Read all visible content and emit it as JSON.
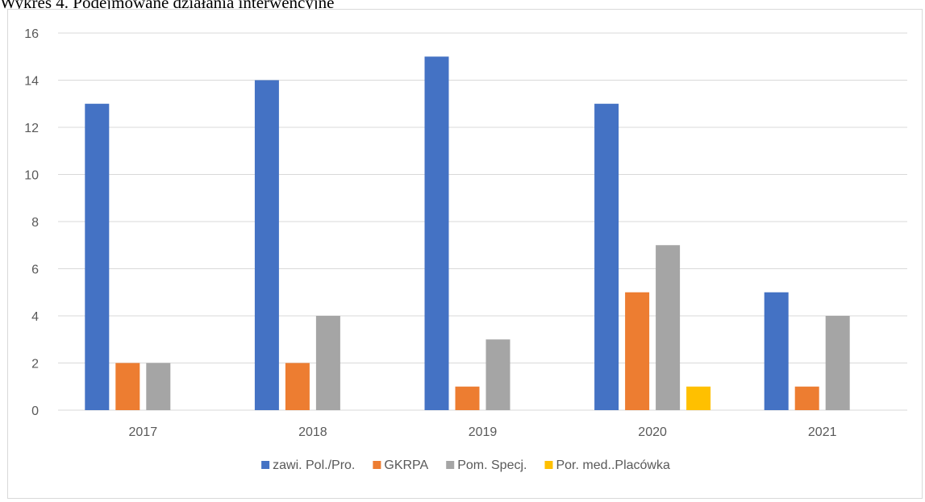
{
  "caption": "Wykres 4. Podejmowane działania interwencyjne",
  "chart_data": {
    "type": "bar",
    "title": "Wykres 4. Podejmowane działania interwencyjne",
    "categories": [
      "2017",
      "2018",
      "2019",
      "2020",
      "2021"
    ],
    "series": [
      {
        "name": "zawi. Pol./Pro.",
        "color": "#4472c4",
        "values": [
          13,
          14,
          15,
          13,
          5
        ]
      },
      {
        "name": "GKRPA",
        "color": "#ed7d31",
        "values": [
          2,
          2,
          1,
          5,
          1
        ]
      },
      {
        "name": "Pom. Specj.",
        "color": "#a5a5a5",
        "values": [
          2,
          4,
          3,
          7,
          4
        ]
      },
      {
        "name": "Por. med..Placówka",
        "color": "#ffc000",
        "values": [
          0,
          0,
          0,
          1,
          0
        ]
      }
    ],
    "ylim": [
      0,
      16
    ],
    "yticks": [
      0,
      2,
      4,
      6,
      8,
      10,
      12,
      14,
      16
    ],
    "grid": true,
    "legend_position": "bottom",
    "colors": {
      "gridline": "#d9d9d9",
      "axis_text": "#595959",
      "frame": "#d9d9d9"
    }
  }
}
